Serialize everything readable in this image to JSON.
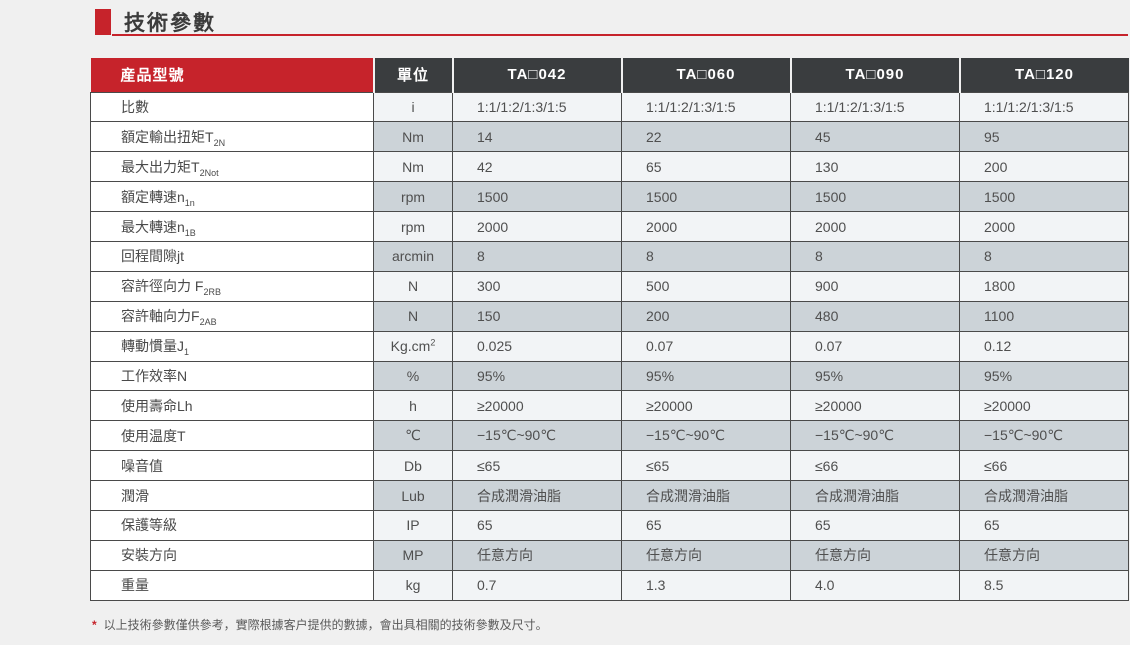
{
  "colors": {
    "accent": "#c6232b",
    "header_bg": "#3a3d3f",
    "row_shaded": "#ccd3d8",
    "row_light": "#f2f4f6",
    "border": "#4a4a4a",
    "text": "#4f4f4f",
    "page_bg": "#f0f0f0"
  },
  "section": {
    "title": "技術參數"
  },
  "table": {
    "header": {
      "model_label": "産品型號",
      "unit_label": "單位",
      "models": [
        "TA□042",
        "TA□060",
        "TA□090",
        "TA□120"
      ]
    },
    "rows": [
      {
        "name": "比數",
        "sub": "",
        "unit": "i",
        "values": [
          "1:1/1:2/1:3/1:5",
          "1:1/1:2/1:3/1:5",
          "1:1/1:2/1:3/1:5",
          "1:1/1:2/1:3/1:5"
        ],
        "shaded": false
      },
      {
        "name": "額定輸出扭矩T",
        "sub": "2N",
        "unit": "Nm",
        "values": [
          "14",
          "22",
          "45",
          "95"
        ],
        "shaded": true
      },
      {
        "name": "最大出力矩T",
        "sub": "2Not",
        "unit": "Nm",
        "values": [
          "42",
          "65",
          "130",
          "200"
        ],
        "shaded": false
      },
      {
        "name": "額定轉速n",
        "sub": "1n",
        "unit": "rpm",
        "values": [
          "1500",
          "1500",
          "1500",
          "1500"
        ],
        "shaded": true
      },
      {
        "name": "最大轉速n",
        "sub": "1B",
        "unit": "rpm",
        "values": [
          "2000",
          "2000",
          "2000",
          "2000"
        ],
        "shaded": false
      },
      {
        "name": "回程間隙jt",
        "sub": "",
        "unit": "arcmin",
        "values": [
          "8",
          "8",
          "8",
          "8"
        ],
        "shaded": true
      },
      {
        "name": "容許徑向力 F",
        "sub": "2RB",
        "unit": "N",
        "values": [
          "300",
          "500",
          "900",
          "1800"
        ],
        "shaded": false
      },
      {
        "name": "容許軸向力F",
        "sub": "2AB",
        "unit": "N",
        "values": [
          "150",
          "200",
          "480",
          "1100"
        ],
        "shaded": true
      },
      {
        "name": "轉動慣量J",
        "sub": "1",
        "unit": "Kg.cm",
        "unit_sup": "2",
        "values": [
          "0.025",
          "0.07",
          "0.07",
          "0.12"
        ],
        "shaded": false
      },
      {
        "name": "工作效率N",
        "sub": "",
        "unit": "%",
        "values": [
          "95%",
          "95%",
          "95%",
          "95%"
        ],
        "shaded": true
      },
      {
        "name": "使用壽命Lh",
        "sub": "",
        "unit": "h",
        "values": [
          "≥20000",
          "≥20000",
          "≥20000",
          "≥20000"
        ],
        "shaded": false
      },
      {
        "name": "使用温度T",
        "sub": "",
        "unit": "℃",
        "values": [
          "−15℃~90℃",
          "−15℃~90℃",
          "−15℃~90℃",
          "−15℃~90℃"
        ],
        "shaded": true
      },
      {
        "name": "噪音值",
        "sub": "",
        "unit": "Db",
        "values": [
          "≤65",
          "≤65",
          "≤66",
          "≤66"
        ],
        "shaded": false
      },
      {
        "name": "潤滑",
        "sub": "",
        "unit": "Lub",
        "values": [
          "合成潤滑油脂",
          "合成潤滑油脂",
          "合成潤滑油脂",
          "合成潤滑油脂"
        ],
        "shaded": true
      },
      {
        "name": "保護等級",
        "sub": "",
        "unit": "IP",
        "values": [
          "65",
          "65",
          "65",
          "65"
        ],
        "shaded": false
      },
      {
        "name": "安裝方向",
        "sub": "",
        "unit": "MP",
        "values": [
          "任意方向",
          "任意方向",
          "任意方向",
          "任意方向"
        ],
        "shaded": true
      },
      {
        "name": "重量",
        "sub": "",
        "unit": "kg",
        "values": [
          "0.7",
          "1.3",
          "4.0",
          "8.5"
        ],
        "shaded": false
      }
    ]
  },
  "footnote": {
    "marker": "*",
    "text": "以上技術參數僅供參考，實際根據客户提供的數據，會出具相關的技術參數及尺寸。"
  }
}
